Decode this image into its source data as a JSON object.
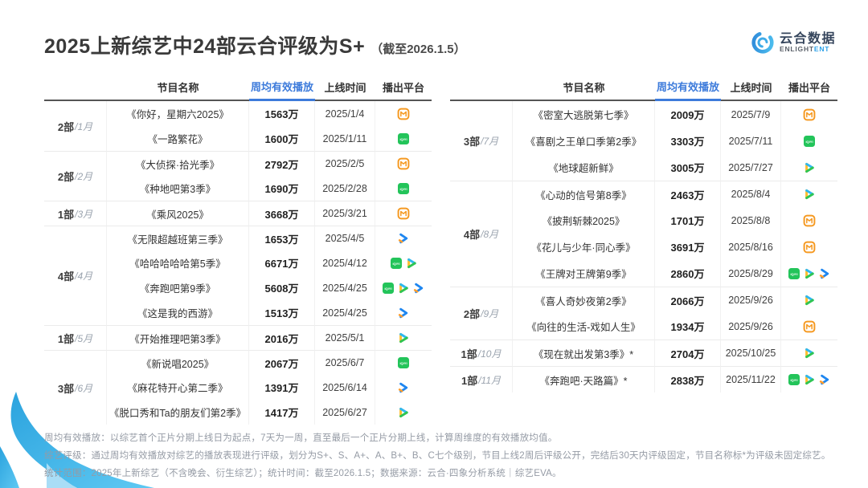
{
  "title": {
    "main": "2025上新综艺中24部云合评级为S+",
    "suffix": "（截至2026.1.5）"
  },
  "logo": {
    "cn": "云合数据",
    "en_dark": "ENLIGHT",
    "en_blue": "ENT"
  },
  "table_headers": {
    "name": "节目名称",
    "plays": "周均有效播放",
    "date": "上线时间",
    "platform": "播出平台"
  },
  "platform_names": {
    "mgtv": "芒果TV",
    "iqiyi": "爱奇艺",
    "tencent": "腾讯视频",
    "youku": "优酷"
  },
  "colors": {
    "accent_blue": "#3D7BDB",
    "brand_blue": "#2BA0E8",
    "mgtv_orange": "#F59A23",
    "iqiyi_green": "#23C45A",
    "tencent_green": "#30C553",
    "youku_blue": "#1E86F0",
    "ring_blue": "#2BA3DE"
  },
  "chart_data": {
    "type": "table",
    "title": "2025上新综艺中24部云合评级为S+（截至2026.1.5）",
    "columns": [
      "节目名称",
      "周均有效播放",
      "上线时间",
      "播出平台"
    ],
    "left_groups": [
      {
        "count": "2部",
        "month": "1月",
        "rows": [
          {
            "name": "《你好，星期六2025》",
            "plays": "1563万",
            "date": "2025/1/4",
            "platforms": [
              "mgtv"
            ]
          },
          {
            "name": "《一路繁花》",
            "plays": "1600万",
            "date": "2025/1/11",
            "platforms": [
              "iqiyi"
            ]
          }
        ]
      },
      {
        "count": "2部",
        "month": "2月",
        "rows": [
          {
            "name": "《大侦探·拾光季》",
            "plays": "2792万",
            "date": "2025/2/5",
            "platforms": [
              "mgtv"
            ]
          },
          {
            "name": "《种地吧第3季》",
            "plays": "1690万",
            "date": "2025/2/28",
            "platforms": [
              "iqiyi"
            ]
          }
        ]
      },
      {
        "count": "1部",
        "month": "3月",
        "rows": [
          {
            "name": "《乘风2025》",
            "plays": "3668万",
            "date": "2025/3/21",
            "platforms": [
              "mgtv"
            ]
          }
        ]
      },
      {
        "count": "4部",
        "month": "4月",
        "rows": [
          {
            "name": "《无限超越班第三季》",
            "plays": "1653万",
            "date": "2025/4/5",
            "platforms": [
              "youku"
            ]
          },
          {
            "name": "《哈哈哈哈哈第5季》",
            "plays": "6671万",
            "date": "2025/4/12",
            "platforms": [
              "iqiyi",
              "tencent"
            ]
          },
          {
            "name": "《奔跑吧第9季》",
            "plays": "5608万",
            "date": "2025/4/25",
            "platforms": [
              "iqiyi",
              "tencent",
              "youku"
            ]
          },
          {
            "name": "《这是我的西游》",
            "plays": "1513万",
            "date": "2025/4/25",
            "platforms": [
              "youku"
            ]
          }
        ]
      },
      {
        "count": "1部",
        "month": "5月",
        "rows": [
          {
            "name": "《开始推理吧第3季》",
            "plays": "2016万",
            "date": "2025/5/1",
            "platforms": [
              "tencent"
            ]
          }
        ]
      },
      {
        "count": "3部",
        "month": "6月",
        "rows": [
          {
            "name": "《新说唱2025》",
            "plays": "2067万",
            "date": "2025/6/7",
            "platforms": [
              "iqiyi"
            ]
          },
          {
            "name": "《麻花特开心第二季》",
            "plays": "1391万",
            "date": "2025/6/14",
            "platforms": [
              "youku"
            ]
          },
          {
            "name": "《脱口秀和Ta的朋友们第2季》",
            "plays": "1417万",
            "date": "2025/6/27",
            "platforms": [
              "tencent"
            ]
          }
        ]
      }
    ],
    "right_groups": [
      {
        "count": "3部",
        "month": "7月",
        "rows": [
          {
            "name": "《密室大逃脱第七季》",
            "plays": "2009万",
            "date": "2025/7/9",
            "platforms": [
              "mgtv"
            ]
          },
          {
            "name": "《喜剧之王单口季第2季》",
            "plays": "3303万",
            "date": "2025/7/11",
            "platforms": [
              "iqiyi"
            ]
          },
          {
            "name": "《地球超新鲜》",
            "plays": "3005万",
            "date": "2025/7/27",
            "platforms": [
              "tencent"
            ]
          }
        ]
      },
      {
        "count": "4部",
        "month": "8月",
        "rows": [
          {
            "name": "《心动的信号第8季》",
            "plays": "2463万",
            "date": "2025/8/4",
            "platforms": [
              "tencent"
            ]
          },
          {
            "name": "《披荆斩棘2025》",
            "plays": "1701万",
            "date": "2025/8/8",
            "platforms": [
              "mgtv"
            ]
          },
          {
            "name": "《花儿与少年·同心季》",
            "plays": "3691万",
            "date": "2025/8/16",
            "platforms": [
              "mgtv"
            ]
          },
          {
            "name": "《王牌对王牌第9季》",
            "plays": "2860万",
            "date": "2025/8/29",
            "platforms": [
              "iqiyi",
              "tencent",
              "youku"
            ]
          }
        ]
      },
      {
        "count": "2部",
        "month": "9月",
        "rows": [
          {
            "name": "《喜人奇妙夜第2季》",
            "plays": "2066万",
            "date": "2025/9/26",
            "platforms": [
              "tencent"
            ]
          },
          {
            "name": "《向往的生活-戏如人生》",
            "plays": "1934万",
            "date": "2025/9/26",
            "platforms": [
              "mgtv"
            ]
          }
        ]
      },
      {
        "count": "1部",
        "month": "10月",
        "rows": [
          {
            "name": "《现在就出发第3季》*",
            "plays": "2704万",
            "date": "2025/10/25",
            "platforms": [
              "tencent"
            ]
          }
        ]
      },
      {
        "count": "1部",
        "month": "11月",
        "rows": [
          {
            "name": "《奔跑吧·天路篇》*",
            "plays": "2838万",
            "date": "2025/11/22",
            "platforms": [
              "iqiyi",
              "tencent",
              "youku"
            ]
          }
        ]
      }
    ]
  },
  "footnotes": [
    "周均有效播放：以综艺首个正片分期上线日为起点，7天为一周，直至最后一个正片分期上线，计算周维度的有效播放均值。",
    "综艺评级：通过周均有效播放对综艺的播放表现进行评级，划分为S+、S、A+、A、B+、B、C七个级别，节目上线2周后评级公开，完结后30天内评级固定，节目名称标*为评级未固定综艺。",
    "统计范围：2025年上新综艺（不含晚会、衍生综艺）；统计时间：截至2026.1.5；数据来源：云合·四象分析系统｜综艺EVA。"
  ]
}
